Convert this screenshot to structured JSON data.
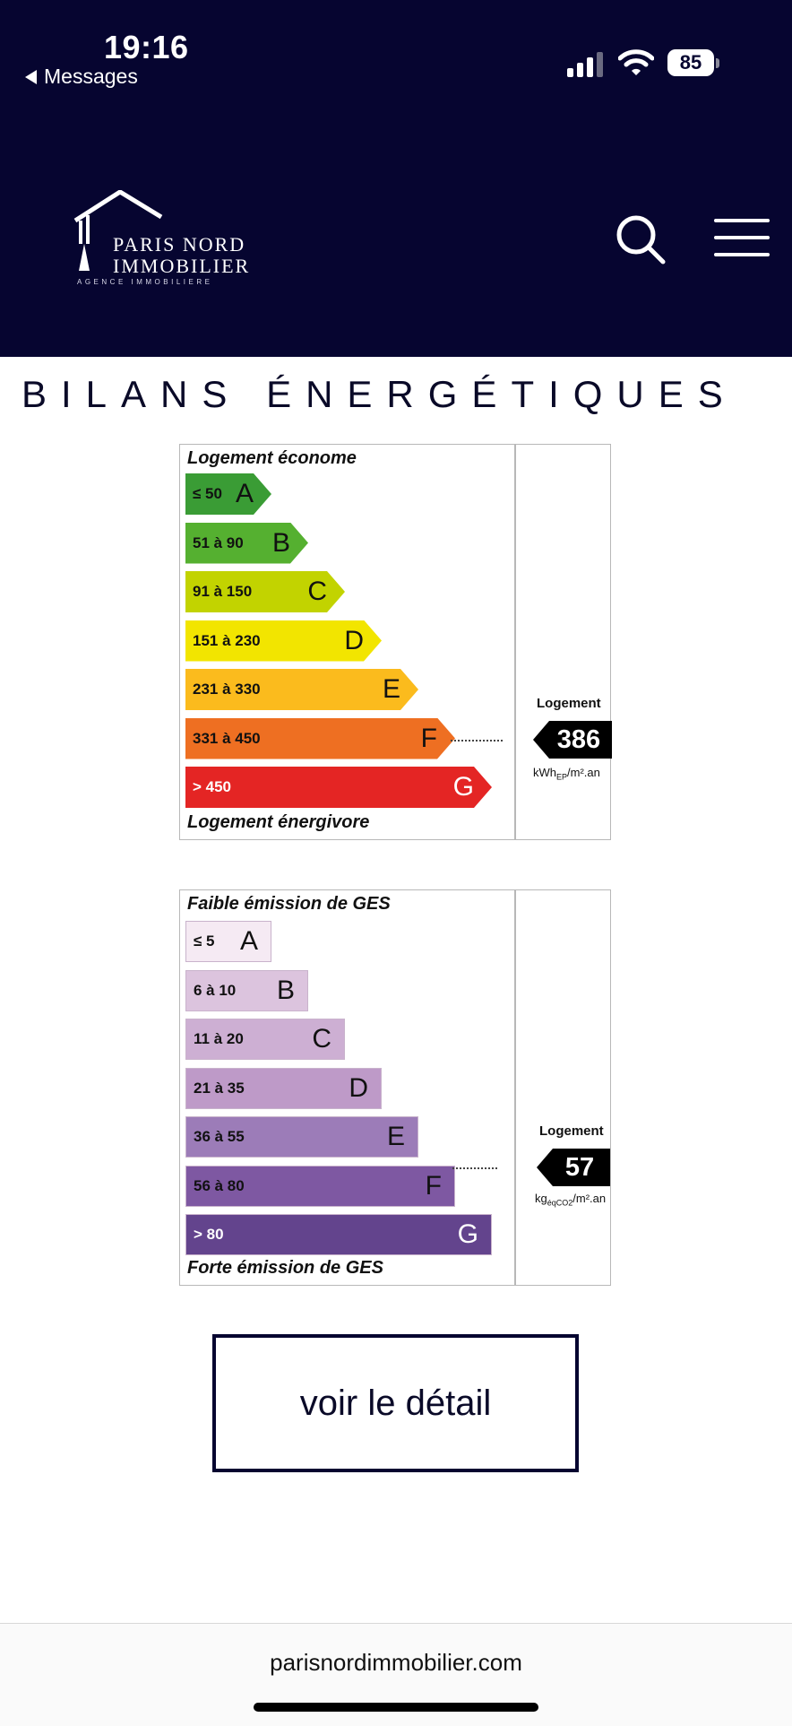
{
  "status_bar": {
    "time": "19:16",
    "back_app": "Messages",
    "battery": "85"
  },
  "header": {
    "logo": {
      "line1": "PARIS NORD",
      "line2": "IMMOBILIER",
      "line3": "AGENCE IMMOBILIERE"
    },
    "search_icon": "search-icon",
    "menu_icon": "hamburger-menu-icon"
  },
  "section_title": "BILANS ÉNERGÉTIQUES",
  "energy_label": {
    "top_label": "Logement économe",
    "bottom_label": "Logement énergivore",
    "bands": [
      {
        "range": "≤ 50",
        "letter": "A",
        "color": "#3a9c35"
      },
      {
        "range": "51 à 90",
        "letter": "B",
        "color": "#55b030"
      },
      {
        "range": "91 à 150",
        "letter": "C",
        "color": "#c2d300"
      },
      {
        "range": "151 à 230",
        "letter": "D",
        "color": "#f2e500"
      },
      {
        "range": "231 à 330",
        "letter": "E",
        "color": "#fbbb1d"
      },
      {
        "range": "331 à 450",
        "letter": "F",
        "color": "#ee6f22"
      },
      {
        "range": "> 450",
        "letter": "G",
        "color": "#e42524"
      }
    ],
    "current_class": "F",
    "logement_label": "Logement",
    "value": "386",
    "unit": "kWhEP/m².an"
  },
  "ges_label": {
    "top_label": "Faible émission de GES",
    "bottom_label": "Forte émission de GES",
    "bands": [
      {
        "range": "≤ 5",
        "letter": "A",
        "color": "#f5eaf3"
      },
      {
        "range": "6 à 10",
        "letter": "B",
        "color": "#dcc4de"
      },
      {
        "range": "11 à 20",
        "letter": "C",
        "color": "#cdafd3"
      },
      {
        "range": "21 à 35",
        "letter": "D",
        "color": "#be9ac8"
      },
      {
        "range": "36 à 55",
        "letter": "E",
        "color": "#9c7cb8"
      },
      {
        "range": "56 à 80",
        "letter": "F",
        "color": "#7e58a2"
      },
      {
        "range": "> 80",
        "letter": "G",
        "color": "#63448d"
      }
    ],
    "current_class": "F",
    "logement_label": "Logement",
    "value": "57",
    "unit": "kgéqCO2/m².an"
  },
  "detail_button": "voir le détail",
  "url": "parisnordimmobilier.com"
}
